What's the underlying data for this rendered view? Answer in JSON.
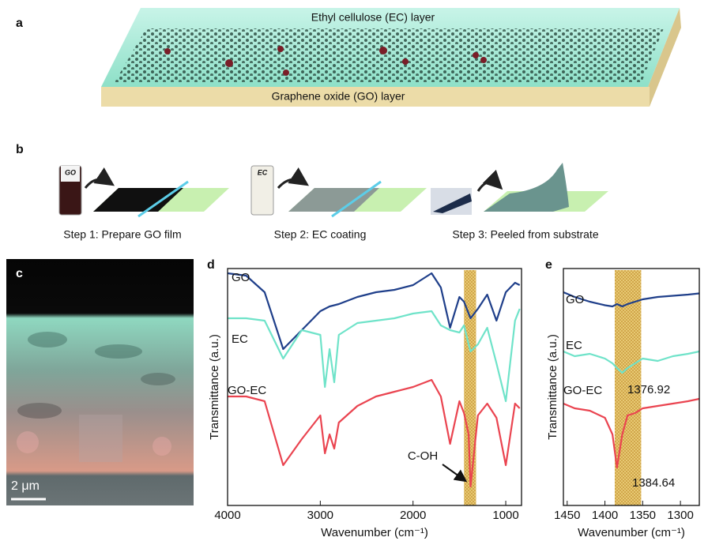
{
  "panels": {
    "a": {
      "label": "a",
      "top_layer": "Ethyl cellulose (EC) layer",
      "bottom_layer": "Graphene oxide (GO) layer"
    },
    "b": {
      "label": "b",
      "vials": [
        "GO",
        "EC"
      ],
      "steps": [
        "Step 1: Prepare GO film",
        "Step 2: EC coating",
        "Step 3: Peeled from substrate"
      ]
    },
    "c": {
      "label": "c",
      "scale_bar": "2 μm"
    }
  },
  "chart_data": [
    {
      "type": "line",
      "label": "d",
      "xlabel": "Wavenumber (cm⁻¹)",
      "ylabel": "Transmittance (a.u.)",
      "xlim": [
        4000,
        830
      ],
      "xticks": [
        4000,
        3000,
        2000,
        1000
      ],
      "ylim": [
        0,
        10
      ],
      "highlight": [
        1450,
        1320
      ],
      "x": [
        4000,
        3800,
        3600,
        3400,
        3200,
        3000,
        2950,
        2900,
        2850,
        2800,
        2600,
        2400,
        2200,
        2000,
        1800,
        1700,
        1600,
        1500,
        1450,
        1400,
        1380,
        1300,
        1200,
        1100,
        1000,
        900,
        850
      ],
      "series": [
        {
          "name": "GO",
          "color": "#1f3f8a",
          "values": [
            9.8,
            9.7,
            9.0,
            6.6,
            7.4,
            8.2,
            8.3,
            8.4,
            8.45,
            8.5,
            8.8,
            9.0,
            9.1,
            9.3,
            9.8,
            9.2,
            7.5,
            8.8,
            8.6,
            8.1,
            7.9,
            8.3,
            8.9,
            7.8,
            9.0,
            9.4,
            9.3
          ]
        },
        {
          "name": "EC",
          "color": "#6fe3c9",
          "values": [
            7.9,
            7.9,
            7.8,
            6.2,
            7.4,
            7.2,
            5.0,
            6.6,
            5.2,
            7.2,
            7.7,
            7.8,
            7.9,
            8.1,
            8.2,
            7.6,
            7.4,
            7.3,
            7.6,
            6.8,
            6.5,
            6.8,
            7.5,
            6.0,
            4.4,
            7.8,
            8.3
          ]
        },
        {
          "name": "GO-EC",
          "color": "#ea4450",
          "values": [
            4.6,
            4.6,
            4.4,
            1.7,
            2.8,
            3.8,
            2.2,
            3.0,
            2.4,
            3.5,
            4.2,
            4.6,
            4.8,
            5.0,
            5.3,
            4.6,
            2.6,
            4.4,
            3.9,
            3.0,
            0.8,
            3.8,
            4.3,
            3.7,
            1.7,
            4.3,
            4.1
          ]
        }
      ],
      "annotations": [
        "C-OH"
      ]
    },
    {
      "type": "line",
      "label": "e",
      "xlabel": "Wavenumber (cm⁻¹)",
      "ylabel": "Transmittance (a.u.)",
      "xlim": [
        1455,
        1275
      ],
      "xticks": [
        1450,
        1400,
        1350,
        1300
      ],
      "ylim": [
        0,
        10
      ],
      "highlight": [
        1387,
        1352
      ],
      "x": [
        1455,
        1440,
        1420,
        1400,
        1390,
        1384,
        1377,
        1370,
        1360,
        1350,
        1330,
        1310,
        1290,
        1275
      ],
      "series": [
        {
          "name": "GO",
          "color": "#1f3f8a",
          "values": [
            9.0,
            8.8,
            8.6,
            8.45,
            8.4,
            8.5,
            8.4,
            8.5,
            8.6,
            8.7,
            8.8,
            8.85,
            8.9,
            8.95
          ]
        },
        {
          "name": "EC",
          "color": "#6fe3c9",
          "values": [
            6.5,
            6.3,
            6.4,
            6.2,
            6.0,
            5.8,
            5.6,
            5.8,
            6.0,
            6.2,
            6.1,
            6.3,
            6.4,
            6.5
          ]
        },
        {
          "name": "GO-EC",
          "color": "#ea4450",
          "values": [
            4.3,
            4.1,
            4.0,
            3.7,
            3.0,
            1.6,
            3.0,
            3.8,
            3.9,
            4.1,
            4.2,
            4.3,
            4.4,
            4.5
          ]
        }
      ],
      "annotations": [
        "1376.92",
        "1384.64"
      ]
    }
  ]
}
